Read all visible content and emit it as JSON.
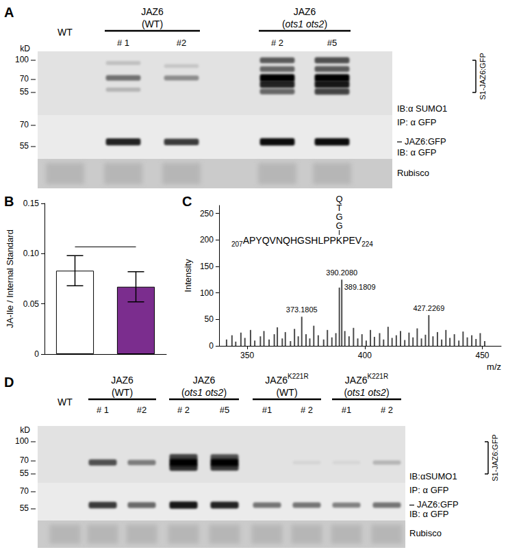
{
  "panels": [
    {
      "letter": "A",
      "groups": [
        {
          "lines": [
            [
              {
                "t": "WT"
              }
            ]
          ],
          "lanes": [
            0,
            0
          ],
          "underline": false
        },
        {
          "lines": [
            [
              {
                "t": "JAZ6"
              }
            ],
            [
              {
                "t": "(WT)"
              }
            ]
          ],
          "lanes": [
            1,
            2
          ],
          "underline": true
        },
        {
          "lines": [
            [
              {
                "t": "JAZ6"
              }
            ],
            [
              {
                "t": "("
              },
              {
                "t": "ots1 ots2",
                "italic": true
              },
              {
                "t": ")"
              }
            ]
          ],
          "lanes": [
            3,
            4
          ],
          "underline": true
        }
      ],
      "lane_labels": [
        null,
        "# 1",
        "#2",
        "# 2",
        "#5"
      ],
      "kD_label": "kD",
      "blots": [
        {
          "ladder": [
            100,
            70,
            55
          ],
          "bracket": {
            "label": "S1-JAZ6:GFP",
            "range": [
              100,
              55
            ]
          },
          "caption": "IB:α SUMO1",
          "bands": [
            [],
            [
              [
                95,
                0.15
              ],
              [
                72,
                0.5
              ],
              [
                58,
                0.2
              ]
            ],
            [
              [
                90,
                0.12
              ],
              [
                72,
                0.38
              ]
            ],
            [
              [
                100,
                0.6
              ],
              [
                85,
                0.55
              ],
              [
                72,
                1
              ],
              [
                64,
                0.85
              ],
              [
                56,
                0.55
              ]
            ],
            [
              [
                100,
                0.65
              ],
              [
                85,
                0.6
              ],
              [
                72,
                1
              ],
              [
                64,
                0.9
              ],
              [
                56,
                0.7
              ]
            ]
          ]
        },
        {
          "ladder": [
            70,
            55
          ],
          "top_label": "IP: α GFP",
          "band_label": {
            "text": "JAZ6:GFP",
            "kD": 58
          },
          "caption": "IB: α GFP",
          "bands": [
            [],
            [
              [
                58,
                0.85
              ]
            ],
            [
              [
                58,
                0.75
              ]
            ],
            [
              [
                58,
                0.95
              ]
            ],
            [
              [
                58,
                0.95
              ]
            ]
          ]
        }
      ],
      "loading_label": "Rubisco"
    },
    {
      "letter": "D",
      "groups": [
        {
          "lines": [
            [
              {
                "t": "WT"
              }
            ]
          ],
          "lanes": [
            0,
            0
          ],
          "underline": false
        },
        {
          "lines": [
            [
              {
                "t": "JAZ6"
              }
            ],
            [
              {
                "t": "(WT)"
              }
            ]
          ],
          "lanes": [
            1,
            2
          ],
          "underline": true
        },
        {
          "lines": [
            [
              {
                "t": "JAZ6"
              }
            ],
            [
              {
                "t": "("
              },
              {
                "t": "ots1 ots2",
                "italic": true
              },
              {
                "t": ")"
              }
            ]
          ],
          "lanes": [
            3,
            4
          ],
          "underline": true
        },
        {
          "lines": [
            [
              {
                "t": "JAZ6"
              },
              {
                "t": "K221R",
                "sup": true
              }
            ],
            [
              {
                "t": "(WT)"
              }
            ]
          ],
          "lanes": [
            5,
            6
          ],
          "underline": true
        },
        {
          "lines": [
            [
              {
                "t": "JAZ6"
              },
              {
                "t": "K221R",
                "sup": true
              }
            ],
            [
              {
                "t": "("
              },
              {
                "t": "ots1 ots2",
                "italic": true
              },
              {
                "t": ")"
              }
            ]
          ],
          "lanes": [
            7,
            8
          ],
          "underline": true
        }
      ],
      "lane_labels": [
        null,
        "# 1",
        "#2",
        "# 2",
        "#5",
        "#1",
        "# 2",
        "#1",
        "# 2"
      ],
      "kD_label": "kD",
      "blots": [
        {
          "ladder": [
            100,
            70,
            55
          ],
          "bracket": {
            "label": "S1-JAZ6:GFP",
            "range": [
              100,
              55
            ]
          },
          "caption": "IB:αSUMO1",
          "bands": [
            [],
            [
              [
                68,
                0.65
              ]
            ],
            [
              [
                68,
                0.45
              ]
            ],
            [
              [
                75,
                0.7
              ],
              [
                68,
                1
              ],
              [
                62,
                0.8
              ]
            ],
            [
              [
                75,
                0.65
              ],
              [
                68,
                1
              ],
              [
                62,
                0.75
              ]
            ],
            [],
            [
              [
                68,
                0.06
              ]
            ],
            [
              [
                68,
                0.05
              ]
            ],
            [
              [
                68,
                0.2
              ]
            ]
          ]
        },
        {
          "ladder": [
            70,
            55
          ],
          "top_label": "IP: α GFP",
          "band_label": {
            "text": "JAZ6:GFP",
            "kD": 58
          },
          "caption": "IB: α GFP",
          "bands": [
            [],
            [
              [
                58,
                0.75
              ]
            ],
            [
              [
                58,
                0.55
              ]
            ],
            [
              [
                58,
                0.9
              ]
            ],
            [
              [
                58,
                0.85
              ]
            ],
            [
              [
                58,
                0.5
              ]
            ],
            [
              [
                58,
                0.5
              ]
            ],
            [
              [
                58,
                0.45
              ]
            ],
            [
              [
                58,
                0.5
              ]
            ]
          ]
        }
      ],
      "loading_label": "Rubisco"
    }
  ],
  "chart_data": [
    {
      "type": "bar",
      "panel_label": "B",
      "categories": [
        null,
        null
      ],
      "values": [
        0.083,
        0.067
      ],
      "errors": [
        0.015,
        0.015
      ],
      "colors": [
        "#ffffff",
        "#7b2d8e"
      ],
      "ylabel": "JA-Ile / Internal Standard",
      "ylim": [
        0,
        0.15
      ],
      "yticks": [
        0,
        0.05,
        {
          "value": 0.1,
          "label": "0.10"
        },
        0.15
      ],
      "comparison_y": 0.107,
      "grid": false
    },
    {
      "type": "bar",
      "panel_label": "C",
      "x": [
        341.2,
        343.5,
        345.1,
        347.3,
        349.0,
        351.4,
        353.2,
        355.6,
        357.1,
        359.3,
        361.5,
        362.8,
        364.9,
        366.2,
        368.4,
        370.1,
        371.7,
        373.1805,
        375.0,
        376.6,
        378.3,
        380.2,
        382.5,
        384.1,
        386.0,
        387.7,
        389.1809,
        390.208,
        391.5,
        393.3,
        395.2,
        397.0,
        398.8,
        400.6,
        402.4,
        404.1,
        406.3,
        408.0,
        409.9,
        411.6,
        413.4,
        415.2,
        417.0,
        418.8,
        420.5,
        422.3,
        424.1,
        425.8,
        427.2269,
        429.0,
        430.9,
        432.7,
        434.5,
        436.2,
        438.1,
        440.0,
        441.8,
        443.6,
        445.5,
        447.3,
        449.1,
        451.0
      ],
      "values": [
        12,
        20,
        8,
        25,
        15,
        30,
        10,
        18,
        28,
        12,
        22,
        35,
        14,
        26,
        9,
        32,
        18,
        55,
        22,
        14,
        38,
        20,
        12,
        30,
        16,
        24,
        110,
        125,
        28,
        18,
        34,
        14,
        22,
        10,
        30,
        17,
        24,
        12,
        36,
        15,
        20,
        28,
        11,
        25,
        16,
        33,
        14,
        21,
        58,
        18,
        26,
        12,
        30,
        15,
        22,
        10,
        27,
        16,
        20,
        13,
        24,
        9
      ],
      "color": "#4a4a4a",
      "xlabel": "m/z",
      "ylabel": "Intensity",
      "xlim": [
        338,
        458
      ],
      "xticks": [
        350,
        400,
        450
      ],
      "ylim": [
        0,
        265
      ],
      "yticks": [
        0,
        50,
        100,
        150,
        200,
        250
      ],
      "peak_labels": [
        {
          "value": 373.1805,
          "label": "373.1805"
        },
        {
          "value": 389.1809,
          "label": "389.1809"
        },
        {
          "value": 390.208,
          "label": "390.2080"
        },
        {
          "value": 427.2269,
          "label": "427.2269"
        }
      ],
      "annotation": {
        "start": "207",
        "before": "APYQVNQHGSHLPP",
        "site": "K",
        "after": "PEV",
        "end": "224",
        "chain": [
          "Q",
          "T",
          "G",
          "G"
        ]
      },
      "grid": false
    }
  ]
}
